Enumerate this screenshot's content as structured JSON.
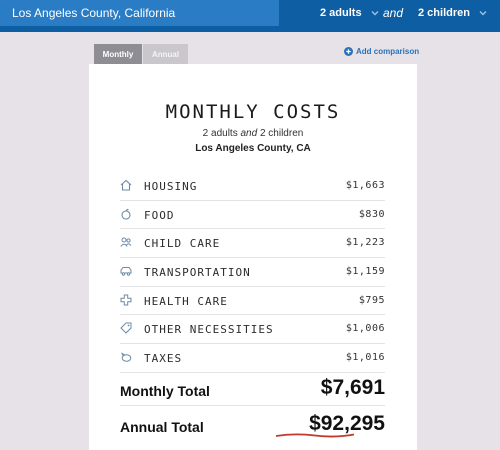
{
  "header": {
    "location_value": "Los Angeles County, California",
    "adults_label": "2 adults",
    "and_label": "and",
    "children_label": "2 children",
    "chevron_icon": "chevron-down-icon"
  },
  "tabs": [
    {
      "label": "Monthly",
      "active": true
    },
    {
      "label": "Annual",
      "active": false
    }
  ],
  "add_comparison": {
    "label": "Add comparison",
    "icon": "plus-circle-icon"
  },
  "card": {
    "title": "MONTHLY COSTS",
    "sub_adults": "2 adults",
    "sub_and": "and",
    "sub_children": "2 children",
    "county": "Los Angeles County, CA"
  },
  "costs": [
    {
      "label": "HOUSING",
      "value": "$1,663",
      "icon": "house-icon"
    },
    {
      "label": "FOOD",
      "value": "$830",
      "icon": "apple-icon"
    },
    {
      "label": "CHILD CARE",
      "value": "$1,223",
      "icon": "people-icon"
    },
    {
      "label": "TRANSPORTATION",
      "value": "$1,159",
      "icon": "car-icon"
    },
    {
      "label": "HEALTH CARE",
      "value": "$795",
      "icon": "medical-cross-icon"
    },
    {
      "label": "OTHER NECESSITIES",
      "value": "$1,006",
      "icon": "tag-icon"
    },
    {
      "label": "TAXES",
      "value": "$1,016",
      "icon": "piggy-bank-icon"
    }
  ],
  "totals": {
    "monthly_label": "Monthly Total",
    "monthly_value": "$7,691",
    "annual_label": "Annual Total",
    "annual_value": "$92,295"
  },
  "colors": {
    "header_bg": "#0e5ea3",
    "input_bg": "#2a7cc4",
    "accent_link": "#2a73b8",
    "icon": "#6e8aa6",
    "underline": "#c0392b"
  }
}
